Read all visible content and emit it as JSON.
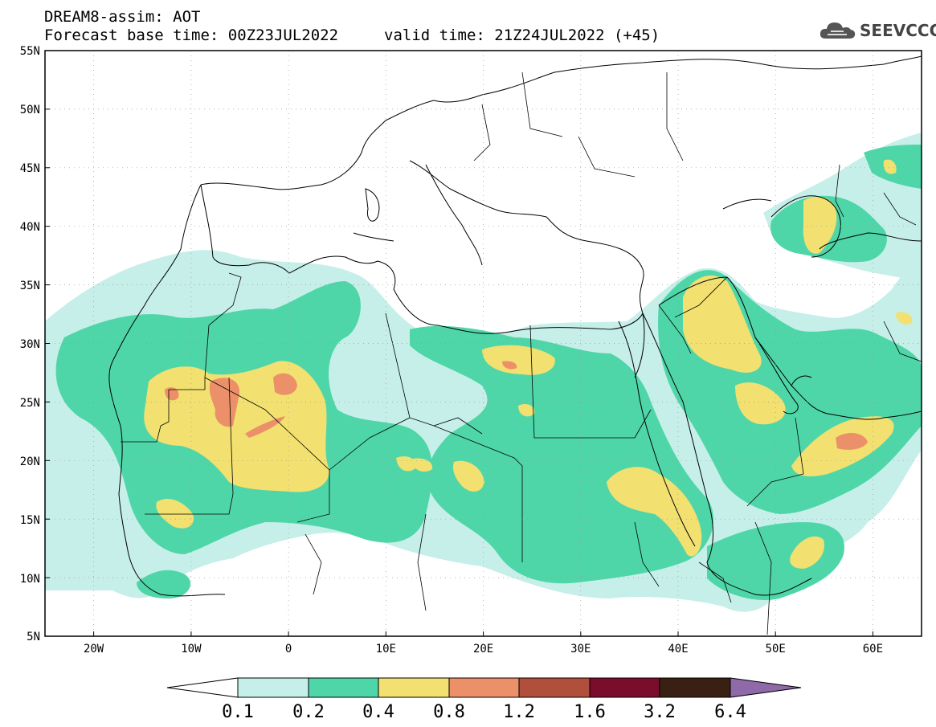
{
  "header": {
    "title": "DREAM8-assim: AOT",
    "base_time": "Forecast base time: 00Z23JUL2022",
    "valid_time": "valid time: 21Z24JUL2022 (+45)"
  },
  "logo": {
    "text": "SEEVCCC",
    "icon": "cloud-icon"
  },
  "map": {
    "lon_range": [
      -25,
      65
    ],
    "lat_range": [
      5,
      55
    ],
    "lat_ticks": [
      "55N",
      "50N",
      "45N",
      "40N",
      "35N",
      "30N",
      "25N",
      "20N",
      "15N",
      "10N",
      "5N"
    ],
    "lon_ticks": [
      "20W",
      "10W",
      "0",
      "10E",
      "20E",
      "30E",
      "40E",
      "50E",
      "60E"
    ]
  },
  "legend": {
    "labels": [
      "0.1",
      "0.2",
      "0.4",
      "0.8",
      "1.2",
      "1.6",
      "3.2",
      "6.4"
    ],
    "colors": [
      "#ffffff",
      "#c6efe9",
      "#4fd6a8",
      "#f2e070",
      "#ec906a",
      "#b04f3b",
      "#7a0c2c",
      "#3a2012",
      "#8e6aa8"
    ]
  }
}
